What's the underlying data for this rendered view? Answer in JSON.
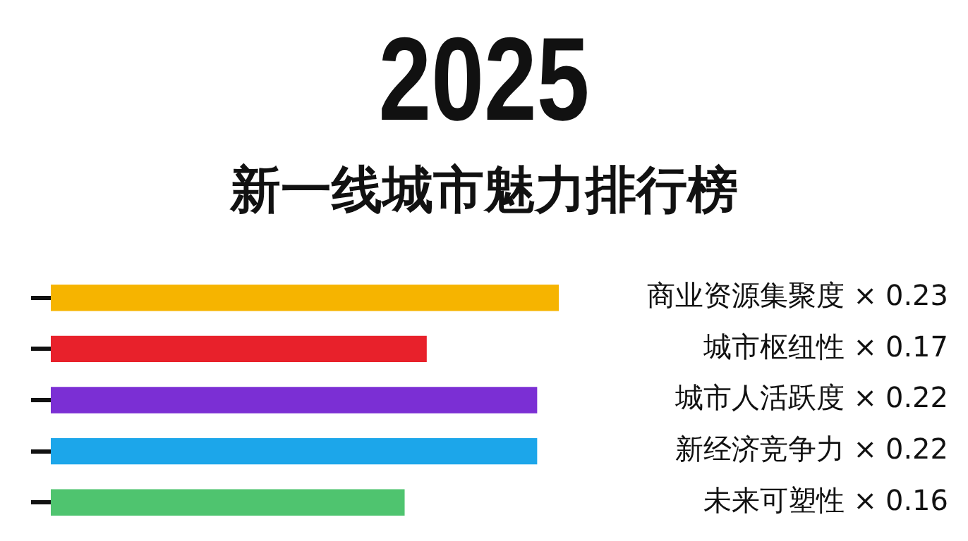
{
  "chart_data": {
    "type": "bar",
    "orientation": "horizontal",
    "title": "2025",
    "subtitle": "新一线城市魅力排行榜",
    "categories": [
      "商业资源集聚度 ×",
      "城市枢纽性 ×",
      "城市人活跃度 ×",
      "新经济竞争力 ×",
      "未来可塑性 ×"
    ],
    "values": [
      0.23,
      0.17,
      0.22,
      0.22,
      0.16
    ],
    "colors": [
      "#f6b400",
      "#e8212b",
      "#7b2fd4",
      "#1ca6ea",
      "#4fc46f"
    ],
    "data_labels": true,
    "grid": false,
    "legend": false
  }
}
